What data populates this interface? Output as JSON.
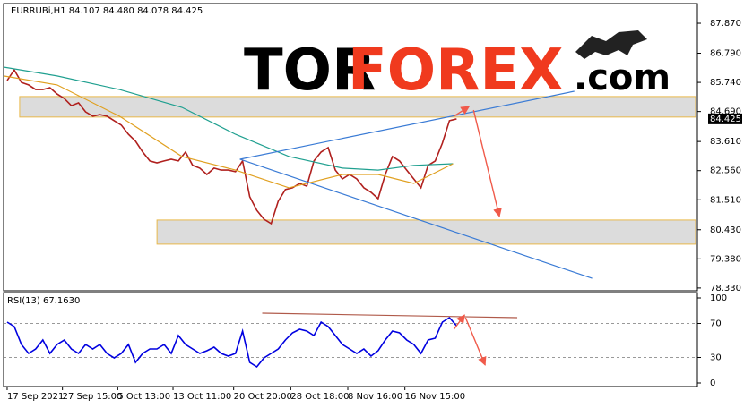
{
  "chart_data": [
    {
      "type": "line",
      "title": "EURRUBi,H1 84.107 84.480 84.078 84.425",
      "xlim": [
        0,
        389
      ],
      "ylim": [
        78.23,
        88.58
      ],
      "yticks": [
        {
          "value": 87.87,
          "label": "87.870"
        },
        {
          "value": 86.79,
          "label": "86.790"
        },
        {
          "value": 85.74,
          "label": "85.740"
        },
        {
          "value": 84.69,
          "label": "84.690"
        },
        {
          "value": 83.61,
          "label": "83.610"
        },
        {
          "value": 82.56,
          "label": "82.560"
        },
        {
          "value": 81.51,
          "label": "81.510"
        },
        {
          "value": 80.43,
          "label": "80.430"
        },
        {
          "value": 79.38,
          "label": "79.380"
        },
        {
          "value": 78.33,
          "label": "78.330"
        }
      ],
      "last_price": {
        "value": 84.425,
        "label": "84.425"
      },
      "series": [
        {
          "color": "#b0201e",
          "x": [
            2,
            6,
            10,
            14,
            18,
            22,
            26,
            30,
            34,
            38,
            42,
            46,
            50,
            54,
            58,
            62,
            66,
            70,
            74,
            78,
            82,
            86,
            90,
            94,
            98,
            102,
            106,
            110,
            114,
            118,
            122,
            126,
            130,
            134,
            138,
            142,
            146,
            150,
            154,
            158,
            162,
            166,
            170,
            174,
            178,
            182,
            186,
            190,
            194,
            198,
            202,
            206,
            210,
            214,
            218,
            222,
            226,
            230,
            234,
            238,
            242,
            246,
            250,
            254
          ],
          "values": [
            85.81,
            86.19,
            85.74,
            85.65,
            85.48,
            85.48,
            85.55,
            85.32,
            85.16,
            84.9,
            85.0,
            84.68,
            84.52,
            84.58,
            84.52,
            84.36,
            84.2,
            83.87,
            83.62,
            83.23,
            82.91,
            82.84,
            82.91,
            82.97,
            82.91,
            83.23,
            82.75,
            82.65,
            82.42,
            82.65,
            82.58,
            82.58,
            82.52,
            82.91,
            81.62,
            81.13,
            80.81,
            80.65,
            81.46,
            81.88,
            81.94,
            82.1,
            82.0,
            82.91,
            83.23,
            83.39,
            82.58,
            82.26,
            82.42,
            82.26,
            81.94,
            81.78,
            81.55,
            82.42,
            83.07,
            82.91,
            82.58,
            82.26,
            81.94,
            82.75,
            82.91,
            83.55,
            84.36,
            84.425
          ]
        },
        {
          "color": "#20a090",
          "x": [
            0,
            30,
            65,
            100,
            130,
            160,
            190,
            210,
            230,
            252
          ],
          "values": [
            86.29,
            85.97,
            85.48,
            84.84,
            83.87,
            83.07,
            82.65,
            82.58,
            82.75,
            82.81
          ]
        },
        {
          "color": "#e0a020",
          "x": [
            0,
            30,
            65,
            100,
            130,
            160,
            190,
            210,
            230,
            252
          ],
          "values": [
            85.97,
            85.65,
            84.52,
            83.07,
            82.58,
            81.94,
            82.42,
            82.42,
            82.1,
            82.81
          ]
        }
      ],
      "zones": [
        {
          "x": [
            9,
            388
          ],
          "y": [
            84.49,
            85.23
          ]
        },
        {
          "x": [
            86,
            388
          ],
          "y": [
            79.91,
            80.78
          ]
        }
      ],
      "trendlines": [
        {
          "color": "#3a7bd5",
          "x": [
            132.5,
            320
          ],
          "values": [
            82.97,
            85.42
          ]
        },
        {
          "color": "#3a7bd5",
          "x": [
            132.5,
            330
          ],
          "values": [
            82.97,
            78.68
          ]
        }
      ],
      "arrows": [
        {
          "color": "#f05a4a",
          "x": [
            252.5,
            261
          ],
          "values": [
            84.52,
            84.87
          ]
        },
        {
          "color": "#f05a4a",
          "x": [
            263.5,
            278
          ],
          "values": [
            84.74,
            80.91
          ]
        }
      ],
      "watermark": {
        "part1": "TOR",
        "part2": "FOREX",
        "part3": ".com"
      }
    },
    {
      "type": "line",
      "title": "RSI(13) 67.1630",
      "xlim": [
        0,
        389
      ],
      "ylim": [
        -4.2,
        106.3
      ],
      "yticks": [
        100,
        70,
        30,
        0
      ],
      "levels": [
        70,
        30
      ],
      "xticks": [
        {
          "value": 2,
          "label": "17 Sep 2021"
        },
        {
          "value": 33,
          "label": "27 Sep 15:00"
        },
        {
          "value": 64,
          "label": "5 Oct 13:00"
        },
        {
          "value": 95,
          "label": "13 Oct 11:00"
        },
        {
          "value": 129,
          "label": "20 Oct 20:00"
        },
        {
          "value": 161,
          "label": "28 Oct 18:00"
        },
        {
          "value": 193,
          "label": "8 Nov 16:00"
        },
        {
          "value": 225,
          "label": "16 Nov 15:00"
        }
      ],
      "series": [
        {
          "color": "#0000e0",
          "x": [
            2,
            6,
            10,
            14,
            18,
            22,
            26,
            30,
            34,
            38,
            42,
            46,
            50,
            54,
            58,
            62,
            66,
            70,
            74,
            78,
            82,
            86,
            90,
            94,
            98,
            102,
            106,
            110,
            114,
            118,
            122,
            126,
            130,
            134,
            138,
            142,
            146,
            150,
            154,
            158,
            162,
            166,
            170,
            174,
            178,
            182,
            186,
            190,
            194,
            198,
            202,
            206,
            210,
            214,
            218,
            222,
            226,
            230,
            234,
            238,
            242,
            246,
            250,
            254
          ],
          "values": [
            71.6,
            66.3,
            45.3,
            34.7,
            40.0,
            50.5,
            34.7,
            45.3,
            50.5,
            40.0,
            34.7,
            45.3,
            40.0,
            45.3,
            34.7,
            29.5,
            34.7,
            45.3,
            24.2,
            34.7,
            40.0,
            40.0,
            45.3,
            34.7,
            55.8,
            45.3,
            40.0,
            34.7,
            37.9,
            42.1,
            34.7,
            31.6,
            34.7,
            61.1,
            24.2,
            18.9,
            29.5,
            34.7,
            40.0,
            50.5,
            58.9,
            63.2,
            61.1,
            55.8,
            71.6,
            66.3,
            55.8,
            45.3,
            40.0,
            34.7,
            40.0,
            31.6,
            37.9,
            50.5,
            61.1,
            58.9,
            50.5,
            45.3,
            34.7,
            50.5,
            52.6,
            71.6,
            76.8,
            67.2
          ]
        }
      ],
      "trendlines": [
        {
          "color": "#b05a4a",
          "x": [
            145,
            288
          ],
          "values": [
            82.1,
            76.8
          ]
        }
      ],
      "arrows": [
        {
          "color": "#f05a4a",
          "x": [
            252.5,
            258.5
          ],
          "values": [
            63.2,
            80.0
          ]
        },
        {
          "color": "#f05a4a",
          "x": [
            259,
            270
          ],
          "values": [
            76.8,
            21.1
          ]
        }
      ]
    }
  ]
}
